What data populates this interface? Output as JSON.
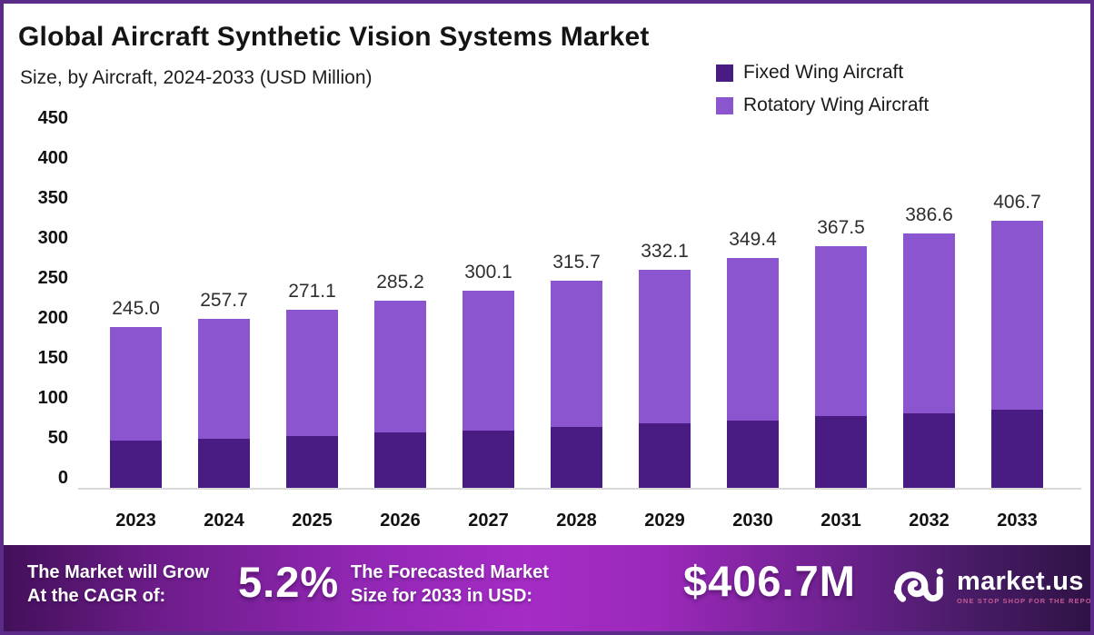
{
  "frame": {
    "border_color": "#5B2C87",
    "background": "#FFFFFF"
  },
  "header": {
    "title": "Global Aircraft Synthetic Vision Systems Market",
    "subtitle": "Size, by Aircraft, 2024-2033 (USD Million)"
  },
  "legend": {
    "items": [
      {
        "label": "Fixed Wing Aircraft",
        "color": "#481C82"
      },
      {
        "label": "Rotatory Wing Aircraft",
        "color": "#8A55CE"
      }
    ]
  },
  "chart_data": {
    "type": "bar",
    "stacked": true,
    "title": "Global Aircraft Synthetic Vision Systems Market Size, by Aircraft, 2024-2033 (USD Million)",
    "categories": [
      "2023",
      "2024",
      "2025",
      "2026",
      "2027",
      "2028",
      "2029",
      "2030",
      "2031",
      "2032",
      "2033"
    ],
    "totals": [
      245.0,
      257.7,
      271.1,
      285.2,
      300.1,
      315.7,
      332.1,
      349.4,
      367.5,
      386.6,
      406.7
    ],
    "total_labels": [
      "245.0",
      "257.7",
      "271.1",
      "285.2",
      "300.1",
      "315.7",
      "332.1",
      "349.4",
      "367.5",
      "386.6",
      "406.7"
    ],
    "series": [
      {
        "name": "Fixed Wing Aircraft",
        "color": "#481C82",
        "values": [
          72,
          75,
          79,
          84,
          87,
          93,
          98,
          102,
          109,
          113,
          119
        ]
      },
      {
        "name": "Rotatory Wing Aircraft",
        "color": "#8A55CE",
        "values": [
          173.0,
          182.7,
          192.1,
          201.2,
          213.1,
          222.7,
          234.1,
          247.4,
          258.5,
          273.6,
          287.7
        ]
      }
    ],
    "xlabel": "",
    "ylabel": "",
    "ylim": [
      0,
      450
    ],
    "ytick_step": 50,
    "yticks": [
      "450",
      "400",
      "350",
      "300",
      "250",
      "200",
      "150",
      "100",
      "50",
      "0"
    ],
    "grid": false,
    "legend_position": "top-right",
    "render": {
      "value_scale": 0.8
    }
  },
  "footer": {
    "cagr_label_line1": "The Market will Grow",
    "cagr_label_line2": "At the CAGR of:",
    "cagr_value": "5.2%",
    "forecast_label_line1": "The Forecasted Market",
    "forecast_label_line2": "Size for 2033 in USD:",
    "forecast_value": "$406.7M",
    "brand": {
      "name": "market.us",
      "tagline": "ONE STOP SHOP FOR THE REPORTS"
    }
  }
}
